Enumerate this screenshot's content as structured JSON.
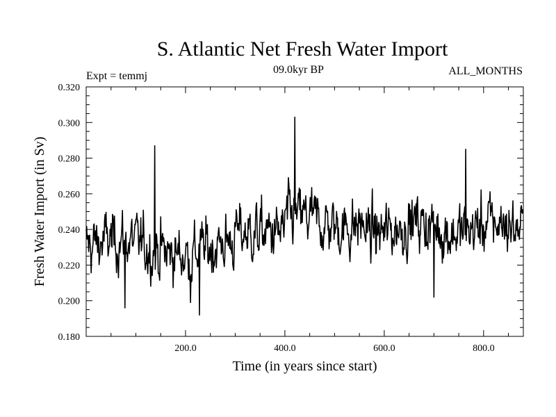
{
  "chart_data": {
    "type": "line",
    "title": "S. Atlantic Net Fresh Water Import",
    "subtitle_left": "Expt = temmj",
    "subtitle_center": "09.0kyr BP",
    "subtitle_right": "ALL_MONTHS",
    "xlabel": "Time (in years since start)",
    "ylabel": "Fresh Water Import (in Sv)",
    "xlim": [
      0,
      880
    ],
    "ylim": [
      0.18,
      0.32
    ],
    "x_ticks": [
      200,
      400,
      600,
      800
    ],
    "x_tick_labels": [
      "200.0",
      "400.0",
      "600.0",
      "800.0"
    ],
    "y_ticks": [
      0.18,
      0.2,
      0.22,
      0.24,
      0.26,
      0.28,
      0.3,
      0.32
    ],
    "y_tick_labels": [
      "0.180",
      "0.200",
      "0.220",
      "0.240",
      "0.260",
      "0.280",
      "0.300",
      "0.320"
    ],
    "series": [
      {
        "name": "Fresh Water Import",
        "x_start": 0,
        "x_step": 1,
        "points": 880,
        "baseline": 0.236,
        "noise": 0.013,
        "extremes": [
          [
            138,
            0.287
          ],
          [
            228,
            0.192
          ],
          [
            78,
            0.196
          ],
          [
            420,
            0.303
          ],
          [
            700,
            0.202
          ],
          [
            764,
            0.285
          ],
          [
            210,
            0.199
          ]
        ]
      }
    ]
  }
}
